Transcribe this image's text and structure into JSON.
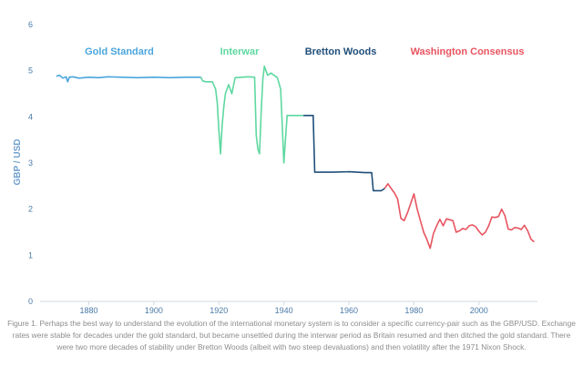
{
  "chart_data": {
    "type": "line",
    "ylabel": "GBP / USD",
    "xlabel": "",
    "ylim": [
      0,
      6
    ],
    "xlim": [
      1865,
      2018
    ],
    "x_ticks": [
      1880,
      1900,
      1920,
      1940,
      1960,
      1980,
      2000
    ],
    "y_ticks": [
      0,
      1,
      2,
      3,
      4,
      5,
      6
    ],
    "grid": false,
    "series": [
      {
        "name": "Gold Standard",
        "color": "#4aa6dc",
        "x": [
          1870,
          1871,
          1872,
          1873,
          1873.5,
          1874,
          1875,
          1877,
          1880,
          1883,
          1886,
          1890,
          1895,
          1900,
          1905,
          1910,
          1913,
          1914.5
        ],
        "y": [
          4.88,
          4.9,
          4.84,
          4.87,
          4.76,
          4.86,
          4.87,
          4.84,
          4.86,
          4.85,
          4.87,
          4.86,
          4.85,
          4.86,
          4.85,
          4.86,
          4.86,
          4.86
        ]
      },
      {
        "name": "Interwar",
        "color": "#5ed8a0",
        "x": [
          1914.5,
          1915,
          1916,
          1917,
          1918,
          1919,
          1919.5,
          1920,
          1920.5,
          1921,
          1921.5,
          1922,
          1923,
          1924,
          1925,
          1927,
          1929,
          1931,
          1931.5,
          1932,
          1932.5,
          1933,
          1933.5,
          1934,
          1935,
          1936,
          1937,
          1938,
          1939,
          1939.5,
          1940,
          1941,
          1942,
          1943,
          1945,
          1946
        ],
        "y": [
          4.86,
          4.78,
          4.76,
          4.76,
          4.76,
          4.6,
          4.3,
          3.7,
          3.2,
          3.8,
          4.2,
          4.5,
          4.7,
          4.5,
          4.85,
          4.86,
          4.87,
          4.86,
          3.6,
          3.3,
          3.2,
          4.1,
          4.8,
          5.1,
          4.9,
          4.95,
          4.9,
          4.85,
          4.6,
          3.8,
          3.0,
          4.03,
          4.03,
          4.03,
          4.03,
          4.03
        ]
      },
      {
        "name": "Bretton Woods",
        "color": "#1f4e79",
        "x": [
          1946,
          1949,
          1949.5,
          1955,
          1960,
          1965,
          1967,
          1967.5,
          1970,
          1971
        ],
        "y": [
          4.03,
          4.03,
          2.8,
          2.8,
          2.81,
          2.79,
          2.79,
          2.4,
          2.4,
          2.45
        ]
      },
      {
        "name": "Washington Consensus",
        "color": "#e8545f",
        "x": [
          1971,
          1972,
          1973,
          1974,
          1975,
          1976,
          1977,
          1978,
          1979,
          1980,
          1981,
          1982,
          1983,
          1984,
          1985,
          1986,
          1987,
          1988,
          1989,
          1990,
          1991,
          1992,
          1993,
          1994,
          1995,
          1996,
          1997,
          1998,
          1999,
          2000,
          2001,
          2002,
          2003,
          2004,
          2005,
          2006,
          2007,
          2008,
          2009,
          2010,
          2011,
          2012,
          2013,
          2014,
          2015,
          2016,
          2017
        ],
        "y": [
          2.45,
          2.55,
          2.45,
          2.35,
          2.22,
          1.8,
          1.75,
          1.92,
          2.12,
          2.33,
          2.0,
          1.75,
          1.5,
          1.34,
          1.15,
          1.47,
          1.64,
          1.78,
          1.64,
          1.79,
          1.77,
          1.75,
          1.5,
          1.53,
          1.58,
          1.56,
          1.64,
          1.66,
          1.62,
          1.52,
          1.44,
          1.5,
          1.64,
          1.83,
          1.82,
          1.84,
          2.0,
          1.86,
          1.57,
          1.55,
          1.6,
          1.59,
          1.56,
          1.65,
          1.53,
          1.35,
          1.29
        ]
      }
    ],
    "annotations": [
      "Gold Standard",
      "Interwar",
      "Bretton Woods",
      "Washington Consensus"
    ]
  },
  "caption": "Figure 1. Perhaps the best way to understand the evolution of the international monetary system is to consider a specific currency-pair such as the GBP/USD. Exchange rates were stable for decades under the gold standard, but became unsettled during the interwar period as Britain resumed and then ditched the gold standard. There were two more decades of stability under Bretton Woods (albeit with two steep devaluations) and then volatility after the 1971 Nixon Shock."
}
